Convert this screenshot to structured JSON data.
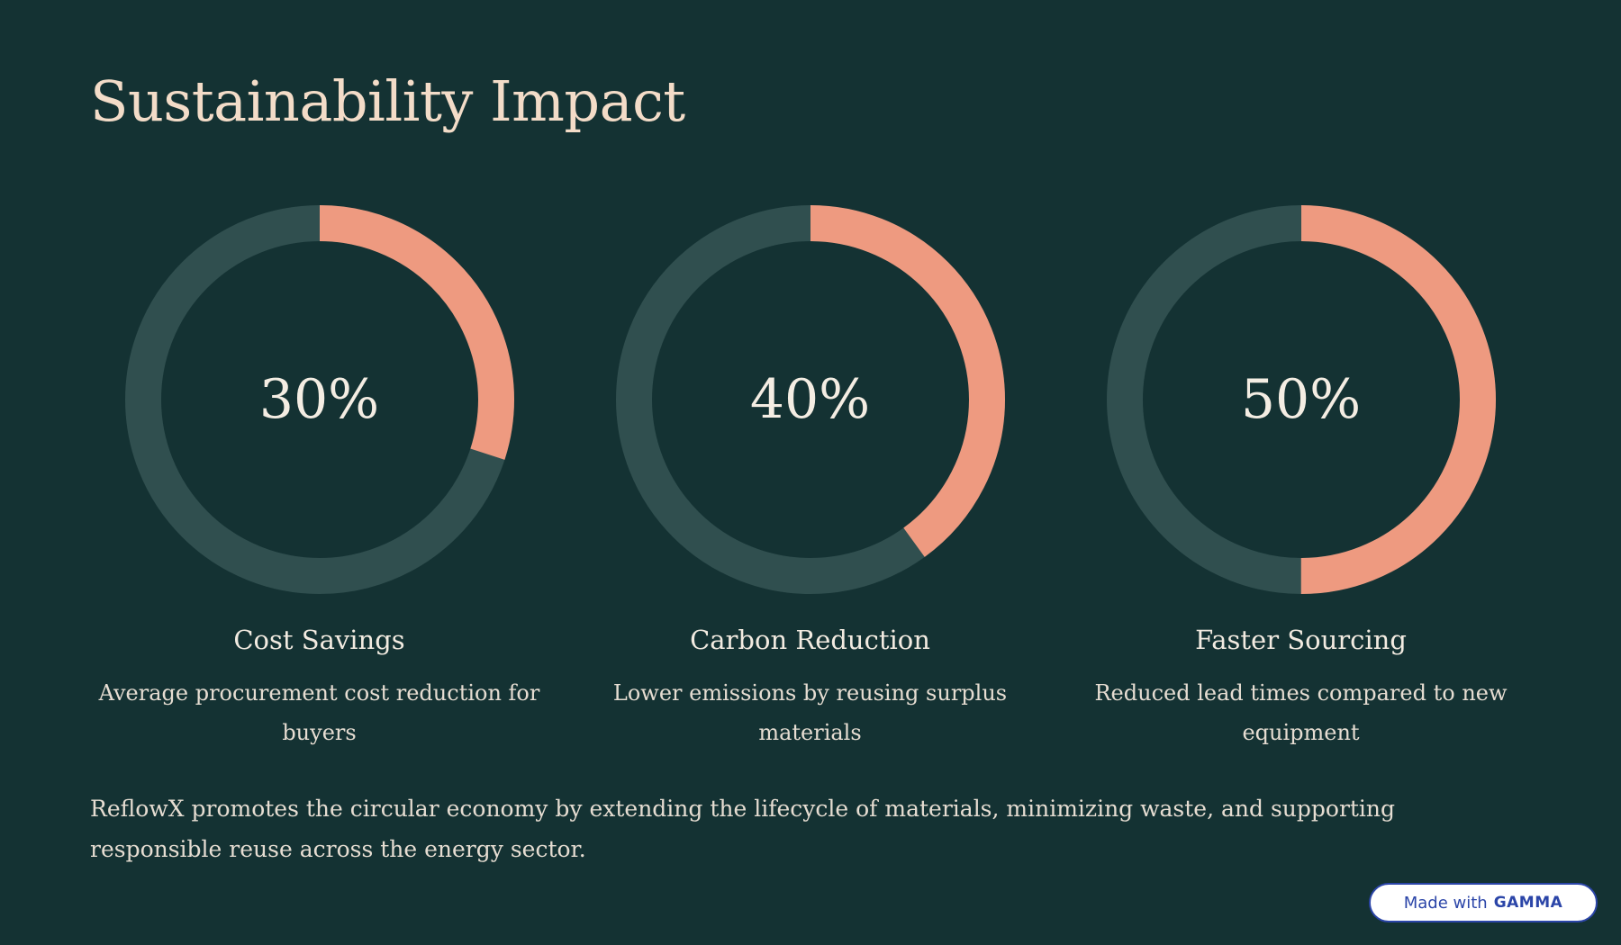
{
  "title": "Sustainability Impact",
  "colors": {
    "background": "#143233",
    "ring_track": "#304f4f",
    "ring_fill": "#ee9a80",
    "title": "#f3dcc8",
    "text": "#e6ddd2",
    "badge_accent": "#2b45a8"
  },
  "stats": [
    {
      "value_text": "30%",
      "percent": 30,
      "label": "Cost Savings",
      "description": "Average procurement cost reduction for buyers"
    },
    {
      "value_text": "40%",
      "percent": 40,
      "label": "Carbon Reduction",
      "description": "Lower emissions by reusing surplus materials"
    },
    {
      "value_text": "50%",
      "percent": 50,
      "label": "Faster Sourcing",
      "description": "Reduced lead times compared to new equipment"
    }
  ],
  "summary": "ReflowX promotes the circular economy by extending the lifecycle of materials, minimizing waste, and supporting responsible reuse across the energy sector.",
  "badge": {
    "made_with": "Made with",
    "brand": "GAMMA"
  }
}
